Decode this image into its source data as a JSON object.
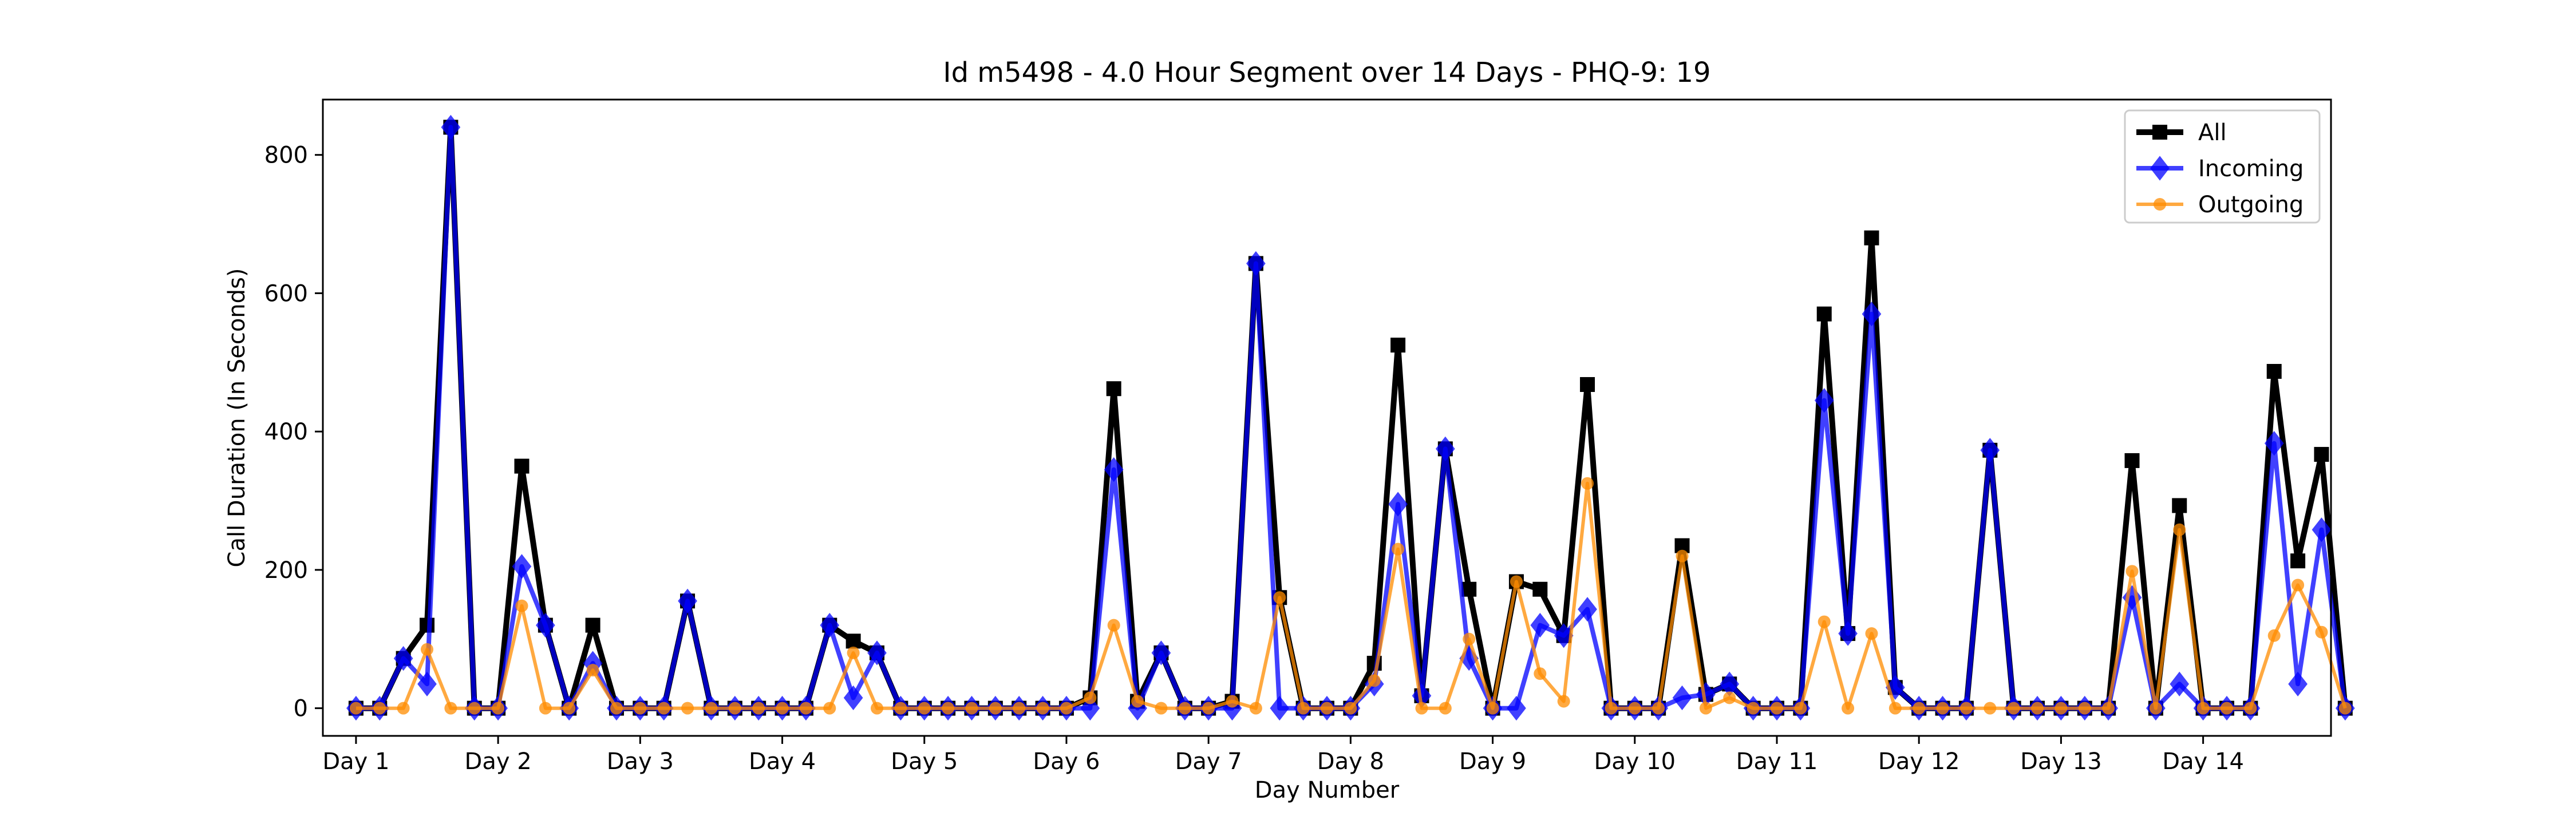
{
  "chart_data": {
    "type": "line",
    "title": "Id m5498 - 4.0 Hour Segment over 14 Days - PHQ-9: 19",
    "xlabel": "Day Number",
    "ylabel": "Call Duration (In Seconds)",
    "ylim": [
      -40,
      880
    ],
    "yticks": [
      0,
      200,
      400,
      600,
      800
    ],
    "xlim": [
      -1.4,
      83.4
    ],
    "xticks": [
      0,
      6,
      12,
      18,
      24,
      30,
      36,
      42,
      48,
      54,
      60,
      66,
      72,
      78
    ],
    "xticklabels": [
      "Day 1",
      "Day 2",
      "Day 3",
      "Day 4",
      "Day 5",
      "Day 6",
      "Day 7",
      "Day 8",
      "Day 9",
      "Day 10",
      "Day 11",
      "Day 12",
      "Day 13",
      "Day 14"
    ],
    "grid": false,
    "legend_position": "top-right",
    "series": [
      {
        "name": "All",
        "color": "#000000",
        "marker": "square",
        "values": [
          0,
          0,
          72,
          120,
          840,
          0,
          0,
          350,
          120,
          0,
          120,
          0,
          0,
          0,
          155,
          0,
          0,
          0,
          0,
          0,
          120,
          97,
          80,
          0,
          0,
          0,
          0,
          0,
          0,
          0,
          0,
          15,
          462,
          10,
          80,
          0,
          0,
          10,
          643,
          160,
          0,
          0,
          0,
          65,
          525,
          18,
          375,
          172,
          0,
          183,
          172,
          105,
          468,
          0,
          0,
          0,
          235,
          20,
          35,
          0,
          0,
          0,
          570,
          108,
          680,
          30,
          0,
          0,
          0,
          373,
          0,
          0,
          0,
          0,
          0,
          358,
          0,
          293,
          0,
          0,
          0,
          487,
          213,
          367,
          0
        ]
      },
      {
        "name": "Incoming",
        "color": "#0000ff",
        "marker": "diamond",
        "values": [
          0,
          0,
          72,
          35,
          840,
          0,
          0,
          205,
          120,
          0,
          65,
          0,
          0,
          0,
          155,
          0,
          0,
          0,
          0,
          0,
          120,
          15,
          80,
          0,
          0,
          0,
          0,
          0,
          0,
          0,
          0,
          0,
          345,
          0,
          80,
          0,
          0,
          0,
          643,
          0,
          0,
          0,
          0,
          35,
          295,
          18,
          375,
          72,
          0,
          0,
          120,
          105,
          143,
          0,
          0,
          0,
          15,
          20,
          35,
          0,
          0,
          0,
          445,
          108,
          570,
          30,
          0,
          0,
          0,
          373,
          0,
          0,
          0,
          0,
          0,
          160,
          0,
          35,
          0,
          0,
          0,
          383,
          35,
          258,
          0
        ]
      },
      {
        "name": "Outgoing",
        "color": "#ff8c00",
        "marker": "circle",
        "values": [
          0,
          0,
          0,
          85,
          0,
          0,
          0,
          148,
          0,
          0,
          55,
          0,
          0,
          0,
          0,
          0,
          0,
          0,
          0,
          0,
          0,
          80,
          0,
          0,
          0,
          0,
          0,
          0,
          0,
          0,
          0,
          15,
          120,
          10,
          0,
          0,
          0,
          10,
          0,
          160,
          0,
          0,
          0,
          40,
          230,
          0,
          0,
          100,
          0,
          183,
          50,
          10,
          325,
          0,
          0,
          0,
          220,
          0,
          15,
          0,
          0,
          0,
          125,
          0,
          108,
          0,
          0,
          0,
          0,
          0,
          0,
          0,
          0,
          0,
          0,
          198,
          0,
          258,
          0,
          0,
          0,
          105,
          178,
          110,
          0
        ]
      }
    ]
  }
}
